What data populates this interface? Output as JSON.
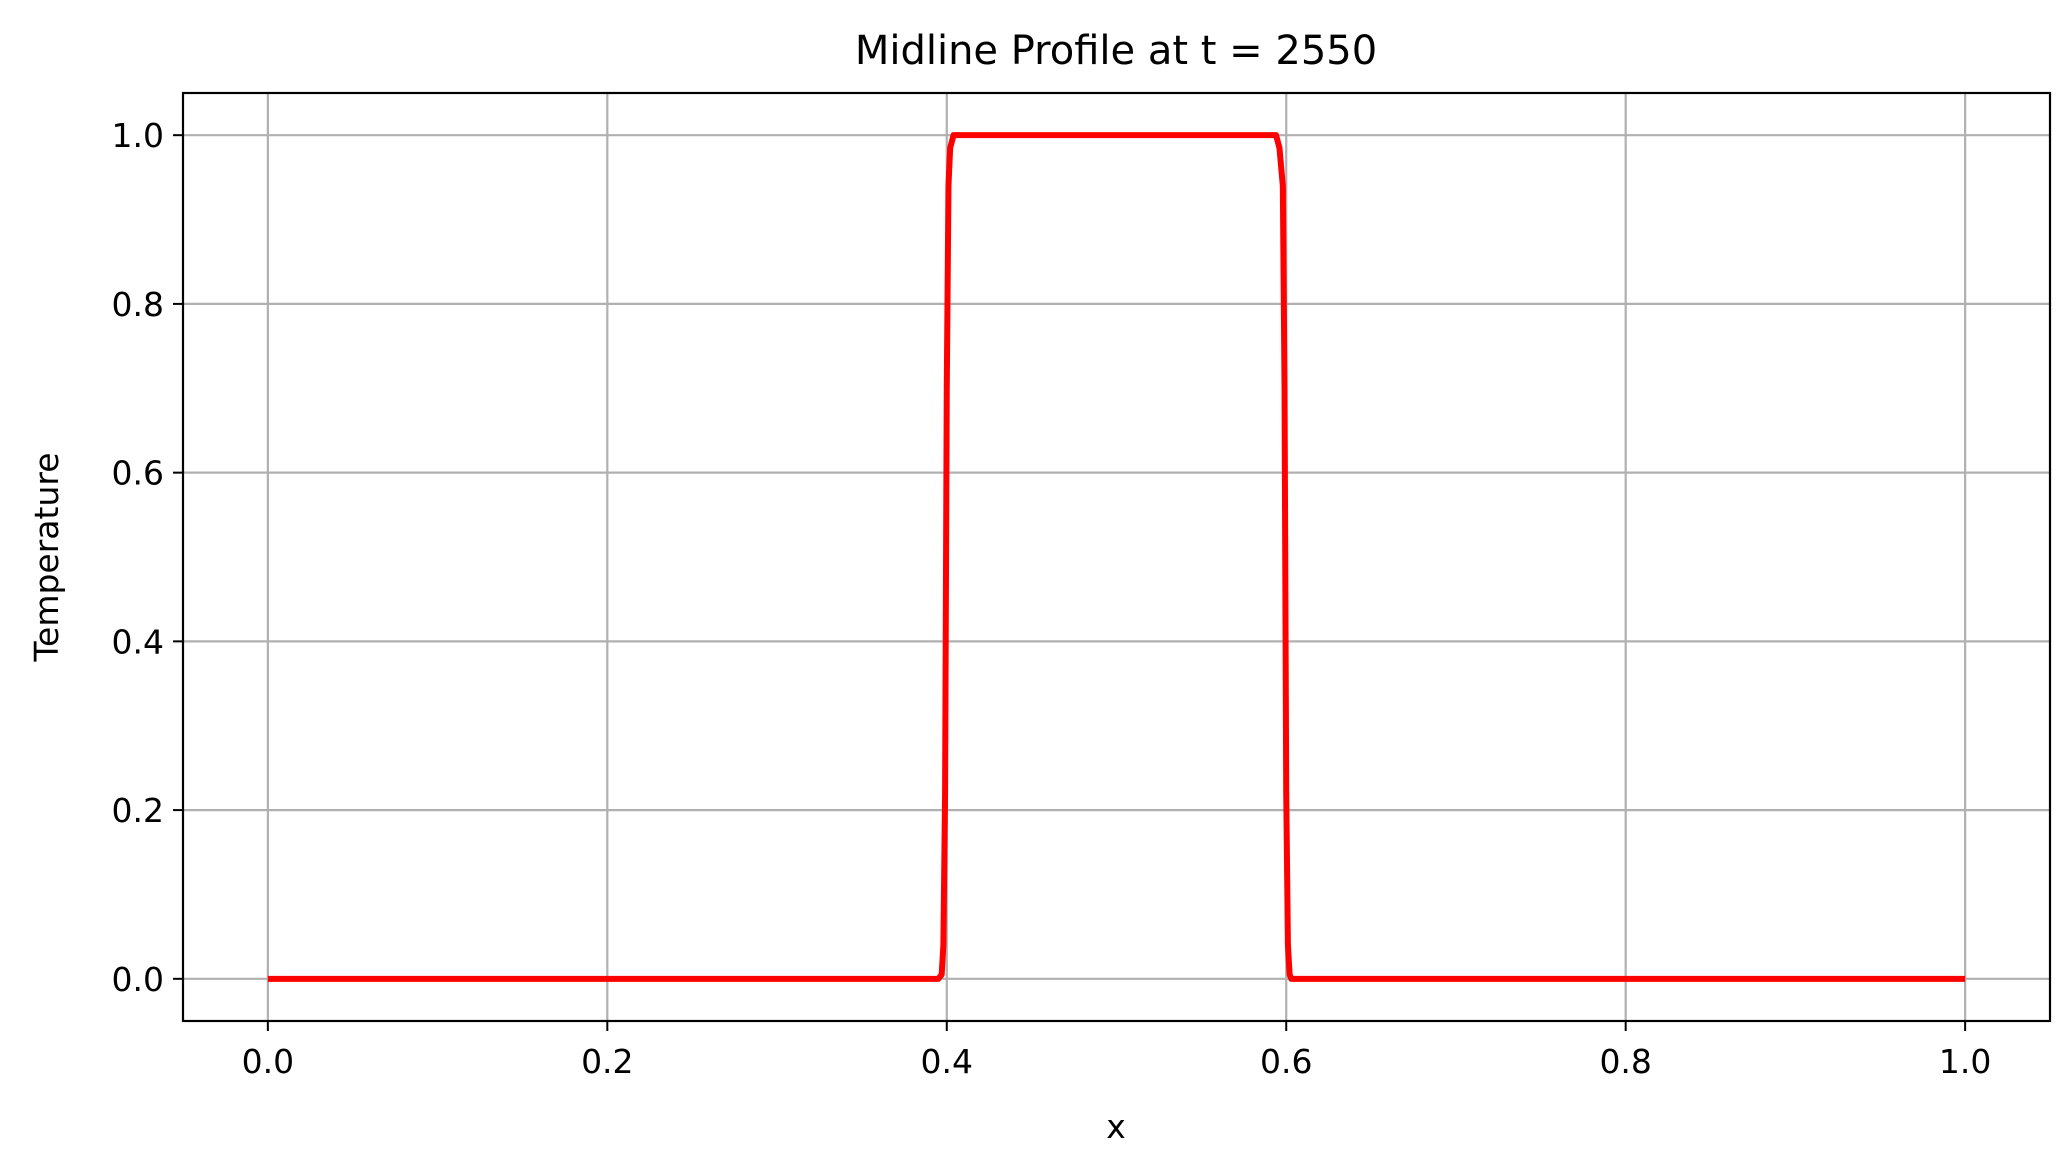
{
  "chart_data": {
    "type": "line",
    "title": "Midline Profile at t = 2550",
    "xlabel": "x",
    "ylabel": "Temperature",
    "xlim": [
      -0.05,
      1.05
    ],
    "ylim": [
      -0.05,
      1.05
    ],
    "xticks": [
      "0.0",
      "0.2",
      "0.4",
      "0.6",
      "0.8",
      "1.0"
    ],
    "yticks": [
      "0.0",
      "0.2",
      "0.4",
      "0.6",
      "0.8",
      "1.0"
    ],
    "xtick_values": [
      0.0,
      0.2,
      0.4,
      0.6,
      0.8,
      1.0
    ],
    "ytick_values": [
      0.0,
      0.2,
      0.4,
      0.6,
      0.8,
      1.0
    ],
    "grid": true,
    "series": [
      {
        "color": "#ff0000",
        "x": [
          0.0,
          0.395,
          0.397,
          0.398,
          0.399,
          0.4,
          0.401,
          0.402,
          0.404,
          0.406,
          0.42,
          0.5,
          0.58,
          0.594,
          0.596,
          0.598,
          0.599,
          0.6,
          0.601,
          0.602,
          0.603,
          0.605,
          0.61,
          1.0
        ],
        "y": [
          0.0,
          0.0,
          0.005,
          0.04,
          0.22,
          0.7,
          0.94,
          0.985,
          1.0,
          1.0,
          1.0,
          1.0,
          1.0,
          1.0,
          0.985,
          0.94,
          0.7,
          0.22,
          0.04,
          0.005,
          0.0,
          0.0,
          0.0,
          0.0
        ]
      }
    ]
  }
}
